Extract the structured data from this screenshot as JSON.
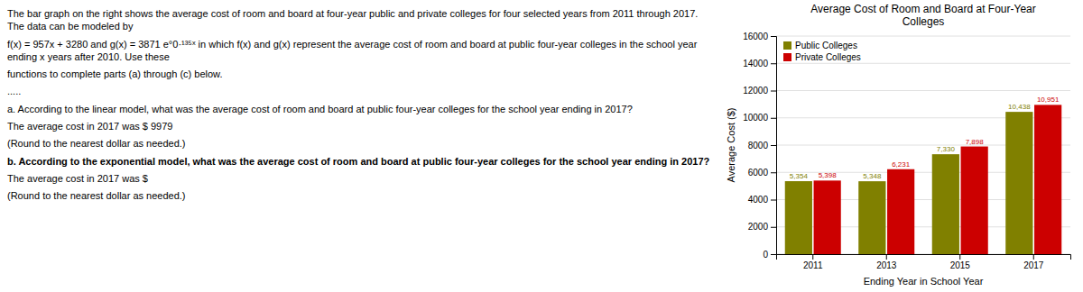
{
  "chart_data": {
    "type": "bar",
    "title": "Average Cost of Room and Board at Four-Year\nColleges",
    "x_label": "Ending Year in School Year",
    "y_label": "Average Cost ($)",
    "categories": [
      "2011",
      "2013",
      "2015",
      "2017"
    ],
    "series": [
      {
        "name": "Public Colleges",
        "color": "#808000",
        "values": [
          5354,
          5348,
          7330,
          10438
        ],
        "value_labels": [
          "5,354",
          "5,348",
          "7,330",
          "10,438"
        ]
      },
      {
        "name": "Private Colleges",
        "color": "#CC0000",
        "values": [
          5398,
          6231,
          7898,
          10951
        ],
        "value_labels": [
          "5,398",
          "6,231",
          "7,898",
          "10,951"
        ]
      }
    ],
    "ylim": [
      0,
      16000
    ],
    "yticks": [
      0,
      2000,
      4000,
      6000,
      8000,
      10000,
      12000,
      14000,
      16000
    ],
    "grid": true,
    "legend": "upper left",
    "data_labels": true,
    "annotations": [
      "The bar graph on the right shows the average cost of room and board at four-year public and private colleges for four selected years from 2011 through 2017. The data can be modeled by",
      "f(x) = 957x + 3280 and g(x) = 3871 e°0·¹³⁵ˣ  in which f(x) and g(x) represent the average cost of room and board at public four-year colleges in the school year ending x years after 2010. Use these",
      "functions to complete parts (a) through (c) below.",
      ".....",
      "a. According to the linear model, what was the average cost of room and board at public four-year colleges for the school year ending in 2017?",
      "The average cost in 2017 was $ 9979",
      "(Round to the nearest dollar as needed.)",
      "b. According to the exponential model, what was the average cost of room and board at public four-year colleges for the school year ending in 2017?",
      "The average cost in 2017 was $",
      "(Round to the nearest dollar as needed.)"
    ]
  }
}
